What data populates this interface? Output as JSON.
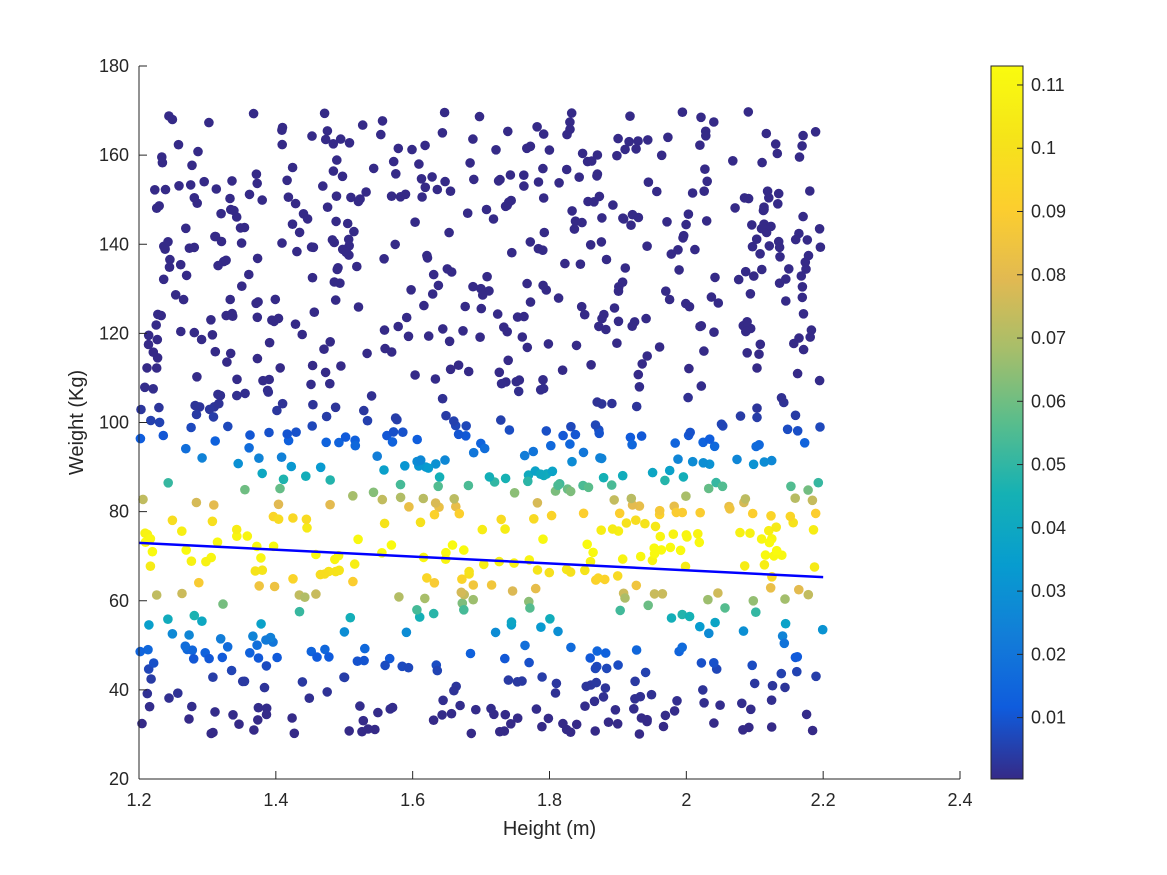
{
  "chart_data": {
    "type": "scatter",
    "title": "",
    "xlabel": "Height (m)",
    "ylabel": "Weight (Kg)",
    "xlim": [
      1.2,
      2.4
    ],
    "ylim": [
      20,
      180
    ],
    "xticks": [
      "1.2",
      "1.4",
      "1.6",
      "1.8",
      "2",
      "2.2",
      "2.4"
    ],
    "yticks": [
      "20",
      "40",
      "60",
      "80",
      "100",
      "120",
      "140",
      "160",
      "180"
    ],
    "grid": false,
    "colormap": "parula",
    "colorbar": {
      "clim": [
        0.0003,
        0.113
      ],
      "ticks": [
        "0.01",
        "0.02",
        "0.03",
        "0.04",
        "0.05",
        "0.06",
        "0.07",
        "0.08",
        "0.09",
        "0.1",
        "0.11"
      ]
    },
    "points": {
      "n": 1000,
      "x_range": [
        1.2,
        2.2
      ],
      "y_range": [
        30,
        170
      ],
      "color_value": "density of weight around the fitted line (mean ≈ 72 Kg, sd ≈ 11.5 Kg)"
    },
    "fit_line": {
      "color": "#0000ff",
      "x": [
        1.2,
        2.2
      ],
      "y": [
        73.0,
        65.3
      ]
    }
  }
}
